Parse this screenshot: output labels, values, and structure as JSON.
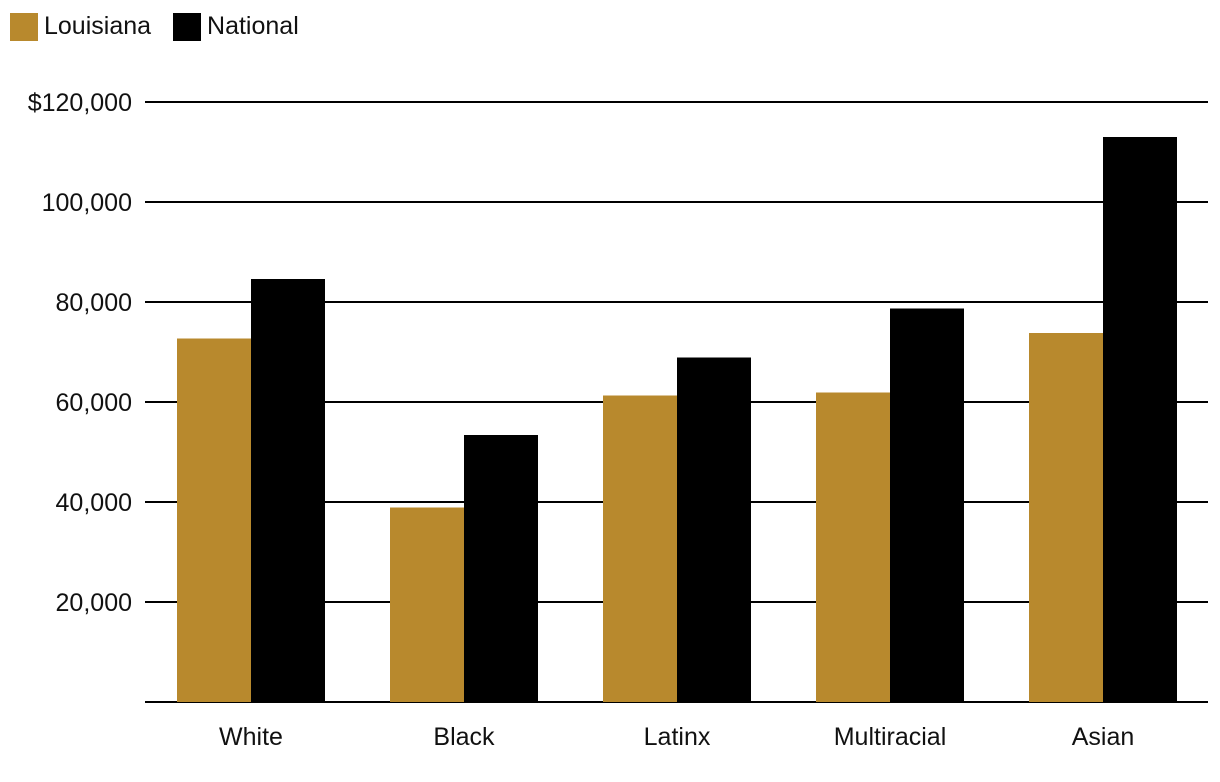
{
  "legend": [
    {
      "name": "Louisiana",
      "color": "#B8892D"
    },
    {
      "name": "National",
      "color": "#000000"
    }
  ],
  "chart_data": {
    "type": "bar",
    "title": "",
    "xlabel": "",
    "ylabel": "",
    "categories": [
      "White",
      "Black",
      "Latinx",
      "Multiracial",
      "Asian"
    ],
    "series": [
      {
        "name": "Louisiana",
        "color": "#B8892D",
        "values": [
          72700,
          38900,
          61300,
          61900,
          73800
        ]
      },
      {
        "name": "National",
        "color": "#000000",
        "values": [
          84600,
          53400,
          68900,
          78700,
          113000
        ]
      }
    ],
    "ylim": [
      0,
      120000
    ],
    "y_ticks": [
      20000,
      40000,
      60000,
      80000,
      100000,
      120000
    ],
    "y_tick_labels": [
      "20,000",
      "40,000",
      "60,000",
      "80,000",
      "100,000",
      "$120,000"
    ],
    "grid": true,
    "legend_position": "top-left"
  }
}
